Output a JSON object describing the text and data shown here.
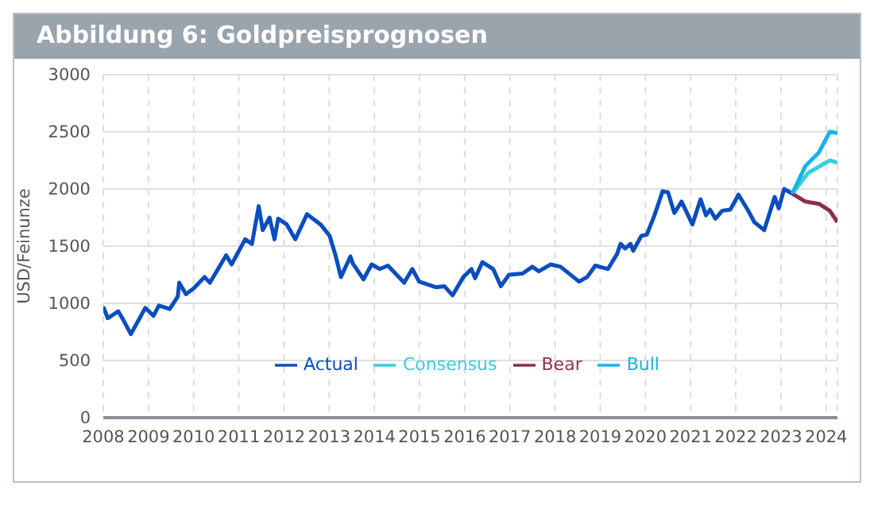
{
  "chart_data": {
    "type": "line",
    "title": "Abbildung 6: Goldpreisprognosen",
    "ylabel": "USD/Feinunze",
    "xlim": [
      2008,
      2024.25
    ],
    "xticks": [
      2008,
      2009,
      2010,
      2011,
      2012,
      2013,
      2014,
      2015,
      2016,
      2017,
      2018,
      2019,
      2020,
      2021,
      2022,
      2023,
      2024
    ],
    "ylim": [
      0,
      3000
    ],
    "yticks": [
      0,
      500,
      1000,
      1500,
      2000,
      2500,
      3000
    ],
    "grid": true,
    "legend": "bottom",
    "line_style": "solid",
    "marker": "none",
    "series": [
      {
        "name": "Actual",
        "color": "#0a4dbf",
        "x": [
          2008.0,
          2008.1,
          2008.33,
          2008.45,
          2008.61,
          2008.93,
          2009.11,
          2009.23,
          2009.47,
          2009.65,
          2009.68,
          2009.83,
          2010.0,
          2010.24,
          2010.36,
          2010.72,
          2010.84,
          2011.14,
          2011.29,
          2011.44,
          2011.53,
          2011.68,
          2011.79,
          2011.87,
          2012.06,
          2012.25,
          2012.51,
          2012.81,
          2013.01,
          2013.14,
          2013.26,
          2013.47,
          2013.52,
          2013.76,
          2013.94,
          2014.12,
          2014.3,
          2014.66,
          2014.84,
          2014.99,
          2015.37,
          2015.55,
          2015.73,
          2015.97,
          2016.15,
          2016.23,
          2016.39,
          2016.63,
          2016.8,
          2016.98,
          2017.28,
          2017.5,
          2017.64,
          2017.9,
          2018.12,
          2018.53,
          2018.71,
          2018.89,
          2019.17,
          2019.37,
          2019.45,
          2019.55,
          2019.67,
          2019.73,
          2019.91,
          2020.03,
          2020.2,
          2020.38,
          2020.5,
          2020.64,
          2020.8,
          2021.04,
          2021.22,
          2021.34,
          2021.43,
          2021.55,
          2021.7,
          2021.88,
          2022.06,
          2022.29,
          2022.41,
          2022.63,
          2022.86,
          2022.95,
          2023.07,
          2023.25
        ],
        "values": [
          970,
          870,
          930,
          850,
          730,
          960,
          890,
          980,
          950,
          1060,
          1180,
          1080,
          1130,
          1230,
          1180,
          1420,
          1340,
          1560,
          1520,
          1850,
          1640,
          1750,
          1560,
          1740,
          1690,
          1560,
          1780,
          1690,
          1590,
          1420,
          1230,
          1410,
          1350,
          1210,
          1340,
          1300,
          1330,
          1180,
          1300,
          1190,
          1140,
          1150,
          1070,
          1230,
          1300,
          1220,
          1360,
          1300,
          1150,
          1250,
          1260,
          1320,
          1280,
          1340,
          1320,
          1190,
          1230,
          1330,
          1300,
          1430,
          1520,
          1480,
          1520,
          1460,
          1590,
          1600,
          1770,
          1980,
          1970,
          1790,
          1890,
          1690,
          1910,
          1770,
          1820,
          1740,
          1810,
          1820,
          1950,
          1800,
          1710,
          1640,
          1930,
          1830,
          2000,
          1960
        ]
      },
      {
        "name": "Consensus",
        "color": "#35d0dc",
        "x": [
          2023.25,
          2023.6,
          2024.08,
          2024.25
        ],
        "values": [
          1960,
          2140,
          2250,
          2230
        ]
      },
      {
        "name": "Bear",
        "color": "#8c2f4f",
        "x": [
          2023.25,
          2023.54,
          2023.84,
          2024.08,
          2024.25
        ],
        "values": [
          1960,
          1890,
          1870,
          1810,
          1710
        ]
      },
      {
        "name": "Bull",
        "color": "#1ab2e8",
        "x": [
          2023.25,
          2023.54,
          2023.84,
          2024.08,
          2024.25
        ],
        "values": [
          1960,
          2200,
          2320,
          2500,
          2490
        ]
      }
    ]
  }
}
